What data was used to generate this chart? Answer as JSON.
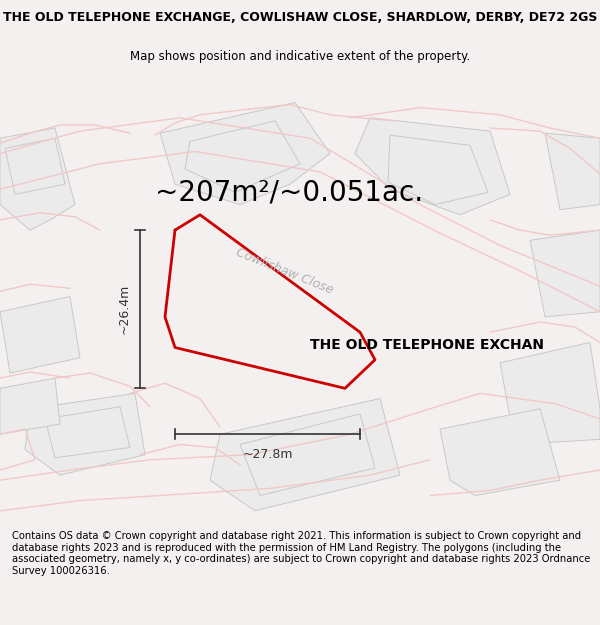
{
  "title_line1": "THE OLD TELEPHONE EXCHANGE, COWLISHAW CLOSE, SHARDLOW, DERBY, DE72 2GS",
  "title_line2": "Map shows position and indicative extent of the property.",
  "area_text": "~207m²/~0.051ac.",
  "width_label": "~27.8m",
  "height_label": "~26.4m",
  "property_label": "THE OLD TELEPHONE EXCHAN",
  "street_label": "Cowlishaw Close",
  "footer_text": "Contains OS data © Crown copyright and database right 2021. This information is subject to Crown copyright and database rights 2023 and is reproduced with the permission of HM Land Registry. The polygons (including the associated geometry, namely x, y co-ordinates) are subject to Crown copyright and database rights 2023 Ordnance Survey 100026316.",
  "bg_color": "#f5f0f0",
  "map_bg": "#ffffff",
  "building_fill": "#ebebeb",
  "building_stroke": "#c8c8c8",
  "road_color": "#f0c8c8",
  "property_outline_color": "#cc0000",
  "dimension_color": "#333333",
  "title_fontsize": 9.0,
  "subtitle_fontsize": 8.5,
  "area_fontsize": 20,
  "label_fontsize": 9,
  "footer_fontsize": 7.2,
  "street_fontsize": 9,
  "prop_label_fontsize": 10
}
